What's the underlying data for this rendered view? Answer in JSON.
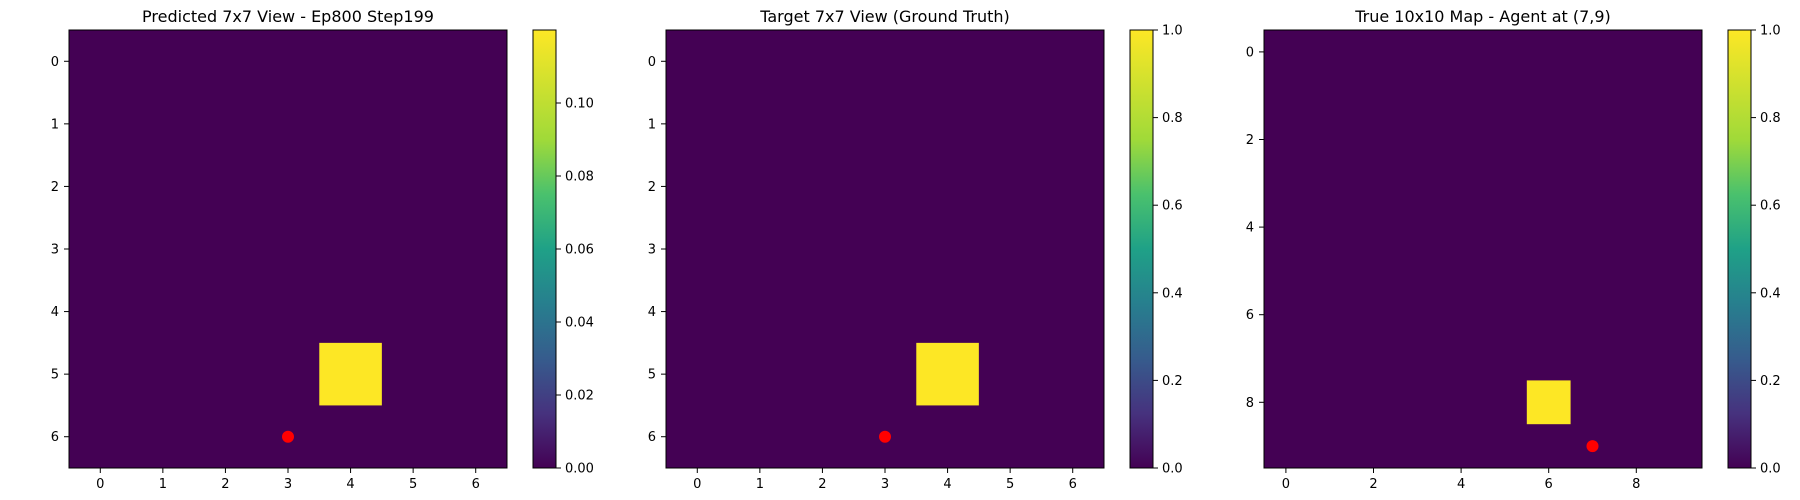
{
  "chart_data": [
    {
      "type": "heatmap",
      "title": "Predicted 7x7 View - Ep800 Step199",
      "grid_size": 7,
      "xticks": [
        0,
        1,
        2,
        3,
        4,
        5,
        6
      ],
      "yticks": [
        0,
        1,
        2,
        3,
        4,
        5,
        6
      ],
      "cells": [
        {
          "x": 4,
          "y": 5,
          "value": 0.12
        }
      ],
      "base_value": 0.0,
      "agent": {
        "x": 3,
        "y": 6
      },
      "colorbar": {
        "min": 0.0,
        "max": 0.12,
        "ticks": [
          "0.00",
          "0.02",
          "0.04",
          "0.06",
          "0.08",
          "0.10"
        ],
        "tick_values": [
          0,
          0.02,
          0.04,
          0.06,
          0.08,
          0.1
        ]
      }
    },
    {
      "type": "heatmap",
      "title": "Target 7x7 View (Ground Truth)",
      "grid_size": 7,
      "xticks": [
        0,
        1,
        2,
        3,
        4,
        5,
        6
      ],
      "yticks": [
        0,
        1,
        2,
        3,
        4,
        5,
        6
      ],
      "cells": [
        {
          "x": 4,
          "y": 5,
          "value": 1.0
        }
      ],
      "base_value": 0.0,
      "agent": {
        "x": 3,
        "y": 6
      },
      "colorbar": {
        "min": 0.0,
        "max": 1.0,
        "ticks": [
          "0.0",
          "0.2",
          "0.4",
          "0.6",
          "0.8",
          "1.0"
        ],
        "tick_values": [
          0,
          0.2,
          0.4,
          0.6,
          0.8,
          1.0
        ]
      }
    },
    {
      "type": "heatmap",
      "title": "True 10x10 Map - Agent at (7,9)",
      "grid_size": 10,
      "xticks": [
        0,
        2,
        4,
        6,
        8
      ],
      "yticks": [
        0,
        2,
        4,
        6,
        8
      ],
      "cells": [
        {
          "x": 6,
          "y": 8,
          "value": 1.0
        }
      ],
      "base_value": 0.0,
      "agent": {
        "x": 7,
        "y": 9
      },
      "colorbar": {
        "min": 0.0,
        "max": 1.0,
        "ticks": [
          "0.0",
          "0.2",
          "0.4",
          "0.6",
          "0.8",
          "1.0"
        ],
        "tick_values": [
          0,
          0.2,
          0.4,
          0.6,
          0.8,
          1.0
        ]
      }
    }
  ],
  "colors": {
    "low": "#440154",
    "high": "#fde725",
    "agent": "#ff0000"
  }
}
